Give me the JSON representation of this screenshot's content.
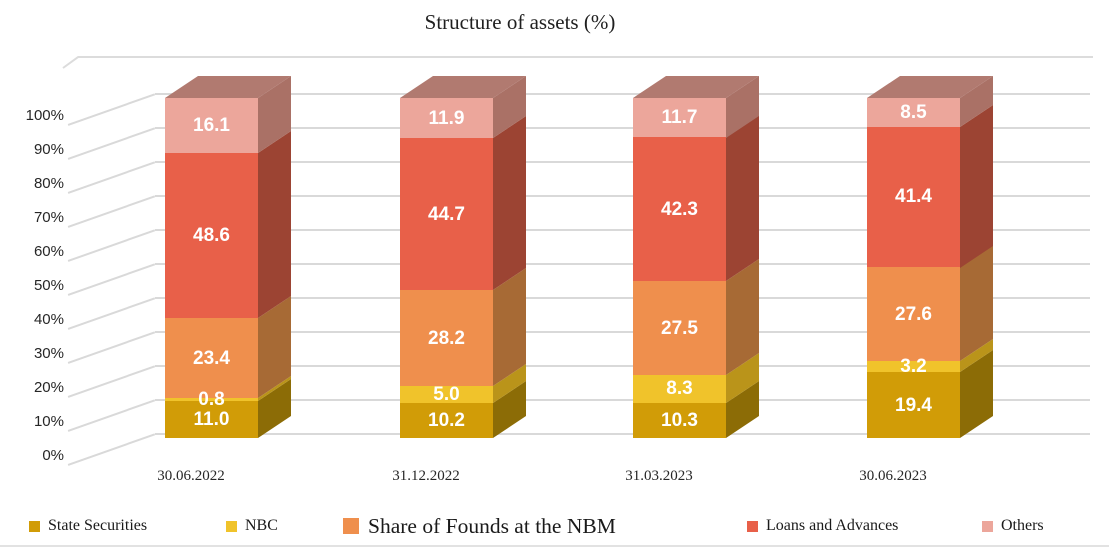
{
  "chart_data": {
    "type": "bar",
    "variant": "3d-stacked-column",
    "title": "Structure of assets (%)",
    "categories": [
      "30.06.2022",
      "31.12.2022",
      "31.03.2023",
      "30.06.2023"
    ],
    "series": [
      {
        "name": "State Securities",
        "color": "#D19C07",
        "side_color": "#8C6C06",
        "emphasized": false,
        "values": [
          11.0,
          10.2,
          10.3,
          19.4
        ]
      },
      {
        "name": "NBC",
        "color": "#F0C32B",
        "side_color": "#BA941A",
        "emphasized": false,
        "values": [
          0.8,
          5.0,
          8.3,
          3.2
        ]
      },
      {
        "name": "Share of Founds at the NBM",
        "color": "#EF8F4D",
        "side_color": "#A76A35",
        "emphasized": true,
        "values": [
          23.4,
          28.2,
          27.5,
          27.6
        ]
      },
      {
        "name": "Loans and Advances",
        "color": "#E86049",
        "side_color": "#9C4433",
        "emphasized": false,
        "values": [
          48.6,
          44.7,
          42.3,
          41.4
        ]
      },
      {
        "name": "Others",
        "color": "#ECA69B",
        "side_color": "#AA7166",
        "top_color": "#B17A70",
        "emphasized": false,
        "values": [
          16.1,
          11.9,
          11.7,
          8.5
        ]
      }
    ],
    "ylim": [
      0,
      100
    ],
    "yticks": [
      "0%",
      "10%",
      "20%",
      "30%",
      "40%",
      "50%",
      "60%",
      "70%",
      "80%",
      "90%",
      "100%"
    ],
    "grid": true,
    "legend_position": "bottom"
  }
}
